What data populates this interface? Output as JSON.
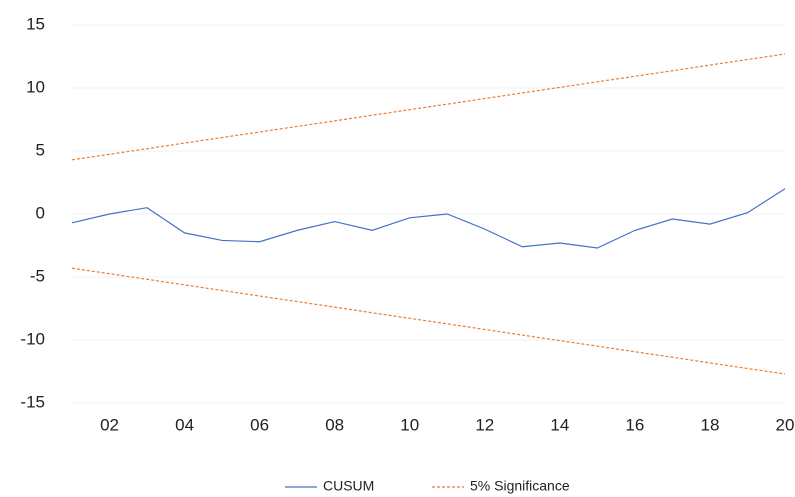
{
  "chart_data": {
    "type": "line",
    "x": [
      1,
      2,
      3,
      4,
      5,
      6,
      7,
      8,
      9,
      10,
      11,
      12,
      13,
      14,
      15,
      16,
      17,
      18,
      19,
      20
    ],
    "series": [
      {
        "name": "CUSUM",
        "color": "#4472c4",
        "values": [
          -0.7,
          0,
          0.5,
          -1.5,
          -2.1,
          -2.2,
          -1.3,
          -0.6,
          -1.3,
          -0.3,
          0,
          -1.2,
          -2.6,
          -2.3,
          -2.7,
          -1.3,
          -0.4,
          -0.8,
          0.1,
          2.0
        ]
      },
      {
        "name": "5% Significance",
        "color": "#ed7d31",
        "dashed": true,
        "values": [
          4.3,
          4.74,
          5.18,
          5.63,
          6.07,
          6.51,
          6.95,
          7.39,
          7.84,
          8.28,
          8.72,
          9.16,
          9.61,
          10.05,
          10.49,
          10.93,
          11.37,
          11.82,
          12.26,
          12.7
        ],
        "values_lower": [
          -4.3,
          -4.74,
          -5.18,
          -5.63,
          -6.07,
          -6.51,
          -6.95,
          -7.39,
          -7.84,
          -8.28,
          -8.72,
          -9.16,
          -9.61,
          -10.05,
          -10.49,
          -10.93,
          -11.37,
          -11.82,
          -12.26,
          -12.7
        ]
      }
    ],
    "xlim": [
      1,
      20
    ],
    "xticks": [
      {
        "value": 2,
        "label": "02"
      },
      {
        "value": 4,
        "label": "04"
      },
      {
        "value": 6,
        "label": "06"
      },
      {
        "value": 8,
        "label": "08"
      },
      {
        "value": 10,
        "label": "10"
      },
      {
        "value": 12,
        "label": "12"
      },
      {
        "value": 14,
        "label": "14"
      },
      {
        "value": 16,
        "label": "16"
      },
      {
        "value": 18,
        "label": "18"
      },
      {
        "value": 20,
        "label": "20"
      }
    ],
    "ylim": [
      -15,
      15
    ],
    "yticks": [
      -15,
      -10,
      -5,
      0,
      5,
      10,
      15
    ],
    "grid": true,
    "legend": "bottom"
  }
}
